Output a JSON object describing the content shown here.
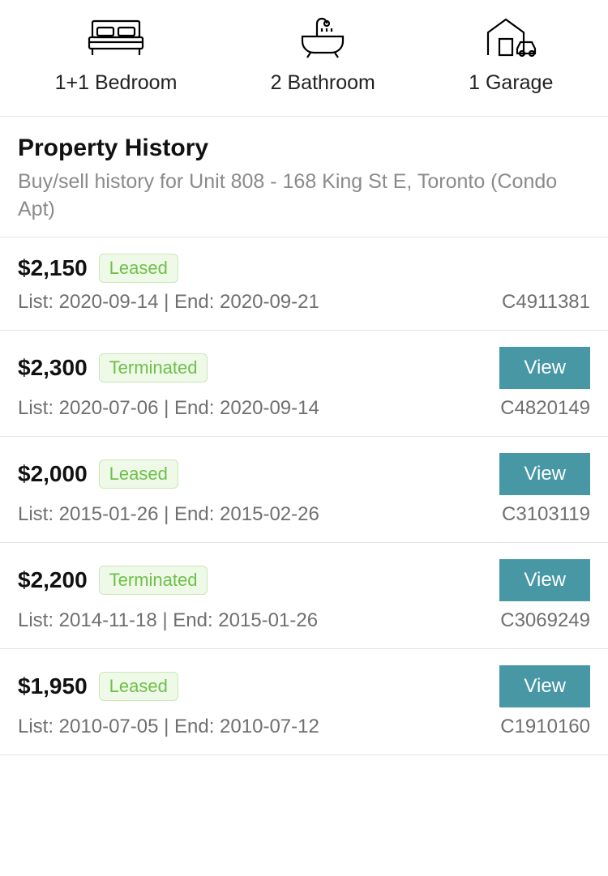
{
  "colors": {
    "badge_bg": "#eef9e8",
    "badge_border": "#c9e8b8",
    "badge_text": "#6fbf4a",
    "view_btn_bg": "#4797a4",
    "view_btn_text": "#ffffff",
    "divider": "#e5e5e5",
    "muted_text": "#8a8a8a"
  },
  "features": [
    {
      "icon": "bed-icon",
      "label": "1+1 Bedroom"
    },
    {
      "icon": "bath-icon",
      "label": "2 Bathroom"
    },
    {
      "icon": "garage-icon",
      "label": "1 Garage"
    }
  ],
  "section": {
    "title": "Property History",
    "subtitle": "Buy/sell history for Unit 808 - 168 King St E, Toronto (Condo Apt)"
  },
  "view_label": "View",
  "history": [
    {
      "price": "$2,150",
      "status": "Leased",
      "dates": "List: 2020-09-14 | End: 2020-09-21",
      "id": "C4911381",
      "has_view": false
    },
    {
      "price": "$2,300",
      "status": "Terminated",
      "dates": "List: 2020-07-06 | End: 2020-09-14",
      "id": "C4820149",
      "has_view": true
    },
    {
      "price": "$2,000",
      "status": "Leased",
      "dates": "List: 2015-01-26 | End: 2015-02-26",
      "id": "C3103119",
      "has_view": true
    },
    {
      "price": "$2,200",
      "status": "Terminated",
      "dates": "List: 2014-11-18 | End: 2015-01-26",
      "id": "C3069249",
      "has_view": true
    },
    {
      "price": "$1,950",
      "status": "Leased",
      "dates": "List: 2010-07-05 | End: 2010-07-12",
      "id": "C1910160",
      "has_view": true
    }
  ]
}
